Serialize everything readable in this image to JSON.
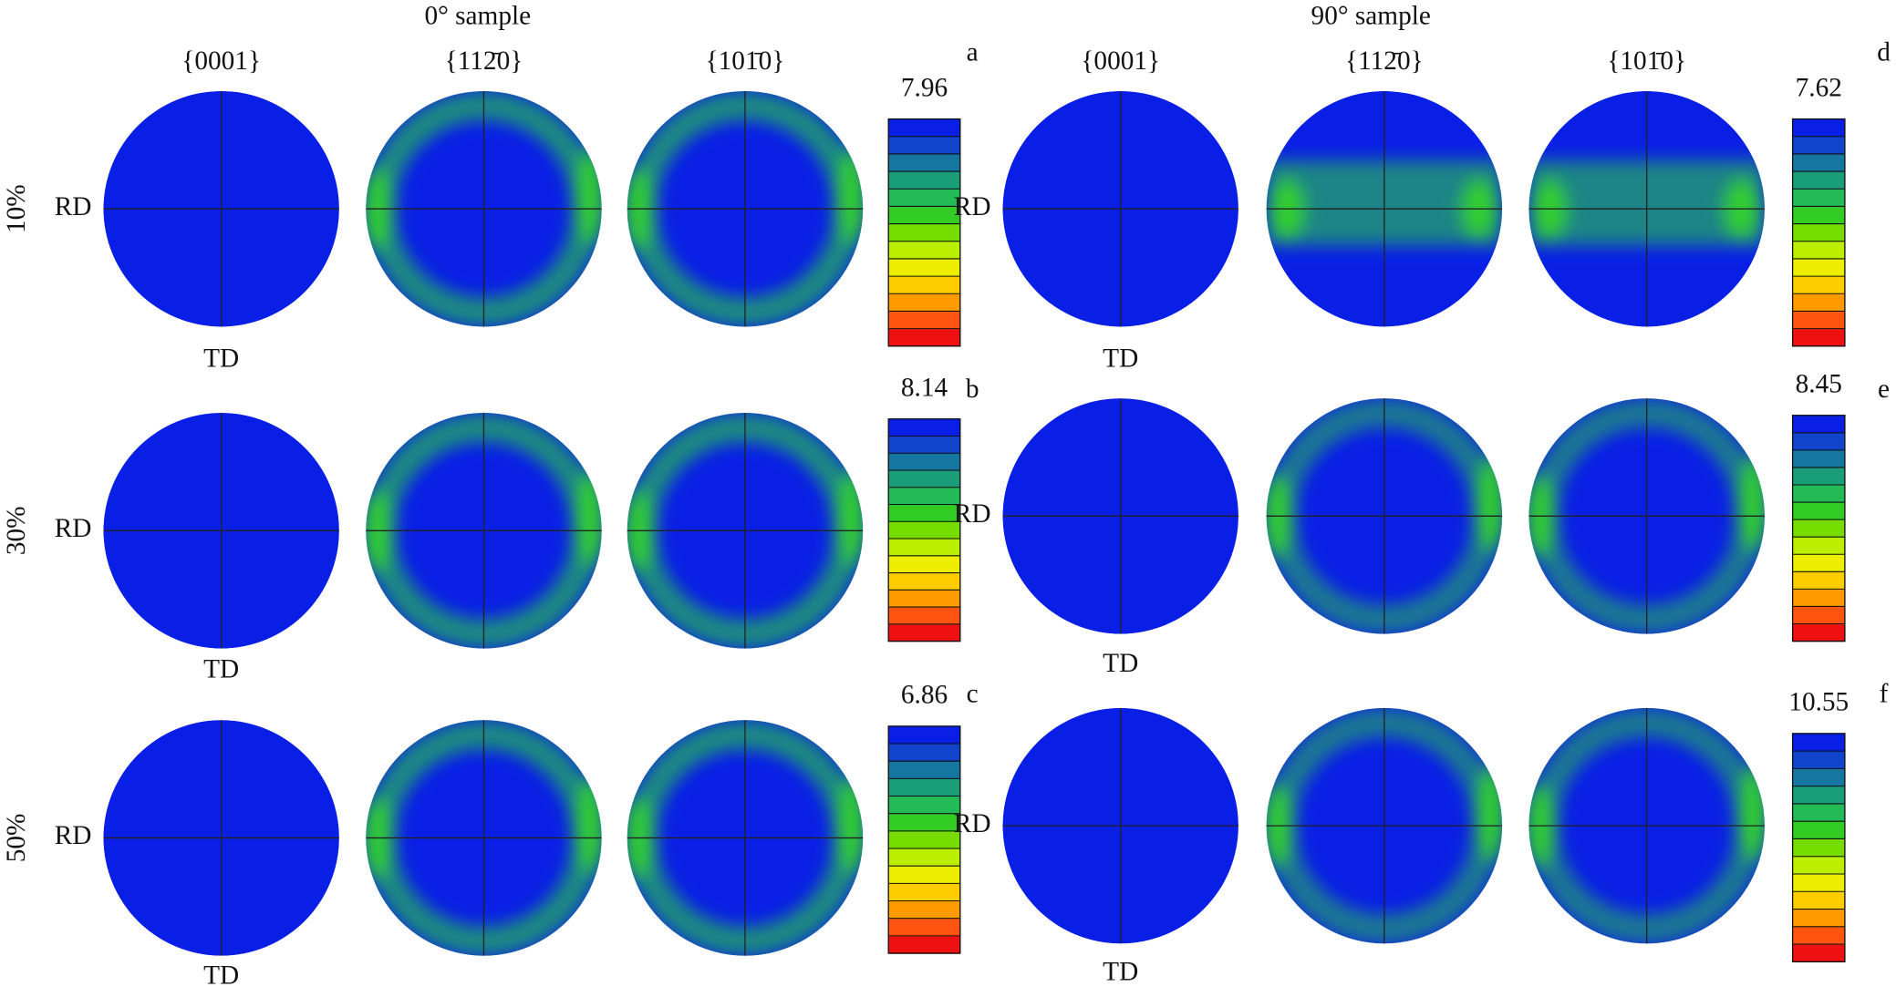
{
  "groups": [
    {
      "title": "0° sample",
      "columns": [
        "{0001}",
        "{112̄0}",
        "{101̄0}"
      ],
      "panels": [
        {
          "letter": "a",
          "max": 7.96
        },
        {
          "letter": "b",
          "max": 8.14
        },
        {
          "letter": "c",
          "max": 6.86
        }
      ]
    },
    {
      "title": "90° sample",
      "columns": [
        "{0001}",
        "{112̄0}",
        "{101̄0}"
      ],
      "panels": [
        {
          "letter": "d",
          "max": 7.62
        },
        {
          "letter": "e",
          "max": 8.45
        },
        {
          "letter": "f",
          "max": 10.55
        }
      ]
    }
  ],
  "row_labels": [
    "10%",
    "30%",
    "50%"
  ],
  "axis_labels": {
    "rd": "RD",
    "td": "TD"
  }
}
